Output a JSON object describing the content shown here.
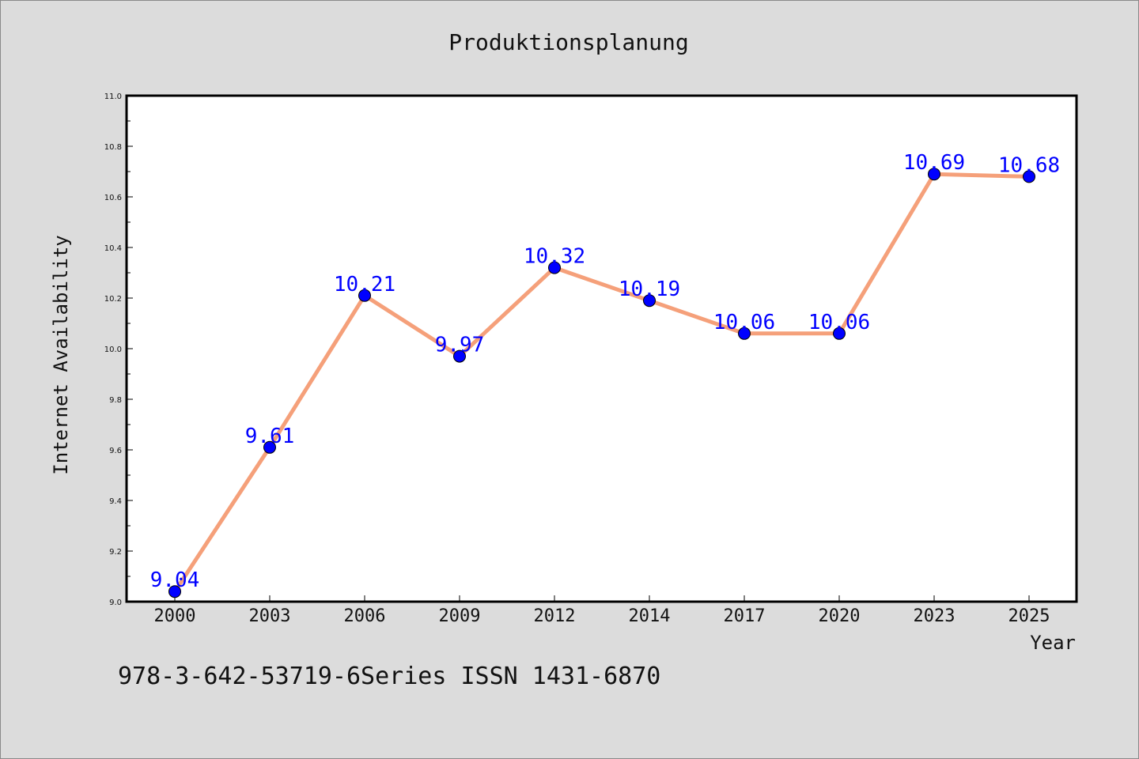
{
  "chart_data": {
    "type": "line",
    "title": "Produktionsplanung",
    "xlabel": "Year",
    "ylabel": "Internet Availability",
    "categories": [
      "2000",
      "2003",
      "2006",
      "2009",
      "2012",
      "2014",
      "2017",
      "2020",
      "2023",
      "2025"
    ],
    "series": [
      {
        "values": [
          9.04,
          9.61,
          10.21,
          9.97,
          10.32,
          10.19,
          10.06,
          10.06,
          10.69,
          10.68
        ],
        "data_labels": [
          "9.04",
          "9.61",
          "10.21",
          "9.97",
          "10.32",
          "10.19",
          "10.06",
          "10.06",
          "10.69",
          "10.68"
        ],
        "line_color": "#f5a07a",
        "marker_color": "#0000ff"
      }
    ],
    "ylim": [
      9.0,
      11.0
    ],
    "yticks": [
      "9.0",
      "9.2",
      "9.4",
      "9.6",
      "9.8",
      "10.0",
      "10.2",
      "10.4",
      "10.6",
      "10.8",
      "11.0"
    ],
    "grid": false,
    "legend": "none",
    "background_color": "#dcdcdc",
    "plot_background_color": "#ffffff",
    "data_label_color": "#0000ff"
  },
  "footer": {
    "text": "978-3-642-53719-6Series ISSN 1431-6870"
  }
}
